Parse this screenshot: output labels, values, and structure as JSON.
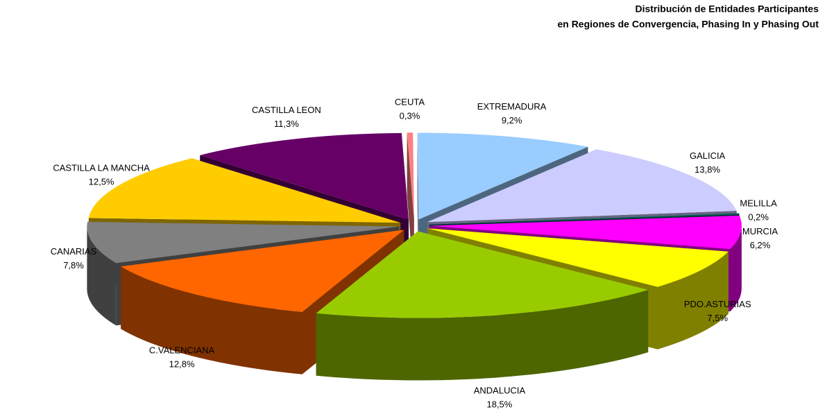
{
  "chart_data": {
    "type": "pie3d",
    "title": [
      "Distribución de Entidades Participantes",
      "en Regiones de Convergencia, Phasing In y Phasing Out"
    ],
    "categories": [
      "ANDALUCIA",
      "C.VALENCIANA",
      "CANARIAS",
      "CASTILLA LA MANCHA",
      "CASTILLA LEON",
      "CEUTA",
      "EXTREMADURA",
      "GALICIA",
      "MELILLA",
      "MURCIA",
      "PDO.ASTURIAS"
    ],
    "values": [
      18.5,
      12.8,
      7.8,
      12.5,
      11.3,
      0.3,
      9.2,
      13.8,
      0.2,
      6.2,
      7.5
    ],
    "value_labels": [
      "18,5%",
      "12,8%",
      "7,8%",
      "12,5%",
      "11,3%",
      "0,3%",
      "9,2%",
      "13,8%",
      "0,2%",
      "6,2%",
      "7,5%"
    ],
    "colors": [
      "#99cc00",
      "#ff6600",
      "#808080",
      "#ffcc00",
      "#660066",
      "#ff8080",
      "#99ccff",
      "#ccccff",
      "#006666",
      "#ff00ff",
      "#ffff00"
    ]
  }
}
